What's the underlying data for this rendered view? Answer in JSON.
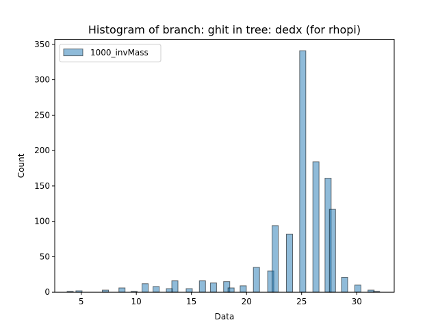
{
  "colors": {
    "bar_fill": "#1f77b4",
    "bar_fill_opacity": 0.5,
    "bar_edge": "#000000",
    "background": "#ffffff",
    "axes": "#000000"
  },
  "chart_data": {
    "type": "bar",
    "title": "Histogram of branch: ghit in tree: dedx (for rhopi)",
    "xlabel": "Data",
    "ylabel": "Count",
    "xlim": [
      2.6,
      33.4
    ],
    "ylim": [
      0,
      357
    ],
    "xticks": [
      5,
      10,
      15,
      20,
      25,
      30
    ],
    "yticks": [
      0,
      50,
      100,
      150,
      200,
      250,
      300,
      350
    ],
    "grid": false,
    "legend": {
      "location": "upper-left",
      "entries": [
        "1000_invMass"
      ]
    },
    "bin_width": 0.56,
    "series": [
      {
        "name": "1000_invMass",
        "bins": [
          {
            "x": 4.0,
            "count": 1
          },
          {
            "x": 4.8,
            "count": 2
          },
          {
            "x": 7.2,
            "count": 3
          },
          {
            "x": 8.7,
            "count": 6
          },
          {
            "x": 9.8,
            "count": 1
          },
          {
            "x": 10.8,
            "count": 12
          },
          {
            "x": 11.8,
            "count": 8
          },
          {
            "x": 13.0,
            "count": 5
          },
          {
            "x": 13.5,
            "count": 16
          },
          {
            "x": 14.8,
            "count": 5
          },
          {
            "x": 16.0,
            "count": 16
          },
          {
            "x": 17.0,
            "count": 13
          },
          {
            "x": 18.2,
            "count": 15
          },
          {
            "x": 18.6,
            "count": 6
          },
          {
            "x": 19.7,
            "count": 9
          },
          {
            "x": 20.9,
            "count": 35
          },
          {
            "x": 22.2,
            "count": 30
          },
          {
            "x": 22.6,
            "count": 94
          },
          {
            "x": 23.9,
            "count": 82
          },
          {
            "x": 25.1,
            "count": 341
          },
          {
            "x": 26.3,
            "count": 184
          },
          {
            "x": 27.4,
            "count": 161
          },
          {
            "x": 27.8,
            "count": 117
          },
          {
            "x": 28.9,
            "count": 21
          },
          {
            "x": 30.1,
            "count": 10
          },
          {
            "x": 31.3,
            "count": 3
          },
          {
            "x": 31.8,
            "count": 1
          }
        ]
      }
    ]
  }
}
